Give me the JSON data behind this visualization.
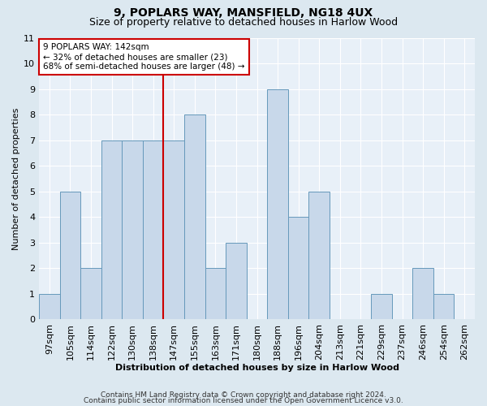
{
  "title1": "9, POPLARS WAY, MANSFIELD, NG18 4UX",
  "title2": "Size of property relative to detached houses in Harlow Wood",
  "xlabel": "Distribution of detached houses by size in Harlow Wood",
  "ylabel": "Number of detached properties",
  "categories": [
    "97sqm",
    "105sqm",
    "114sqm",
    "122sqm",
    "130sqm",
    "138sqm",
    "147sqm",
    "155sqm",
    "163sqm",
    "171sqm",
    "180sqm",
    "188sqm",
    "196sqm",
    "204sqm",
    "213sqm",
    "221sqm",
    "229sqm",
    "237sqm",
    "246sqm",
    "254sqm",
    "262sqm"
  ],
  "values": [
    1,
    5,
    2,
    7,
    7,
    7,
    7,
    8,
    2,
    3,
    0,
    9,
    4,
    5,
    0,
    0,
    1,
    0,
    2,
    1,
    0
  ],
  "bar_color": "#c8d8ea",
  "bar_edge_color": "#6699bb",
  "vline_pos": 5.5,
  "annotation_text": "9 POPLARS WAY: 142sqm\n← 32% of detached houses are smaller (23)\n68% of semi-detached houses are larger (48) →",
  "annotation_box_color": "#ffffff",
  "annotation_box_edge_color": "#cc0000",
  "ylim": [
    0,
    11
  ],
  "yticks": [
    0,
    1,
    2,
    3,
    4,
    5,
    6,
    7,
    8,
    9,
    10,
    11
  ],
  "footnote1": "Contains HM Land Registry data © Crown copyright and database right 2024.",
  "footnote2": "Contains public sector information licensed under the Open Government Licence v3.0.",
  "bg_color": "#dce8f0",
  "plot_bg_color": "#e8f0f8",
  "grid_color": "#ffffff",
  "title1_fontsize": 10,
  "title2_fontsize": 9,
  "axis_label_fontsize": 8,
  "tick_fontsize": 8,
  "footnote_fontsize": 6.5,
  "vline_color": "#cc0000"
}
